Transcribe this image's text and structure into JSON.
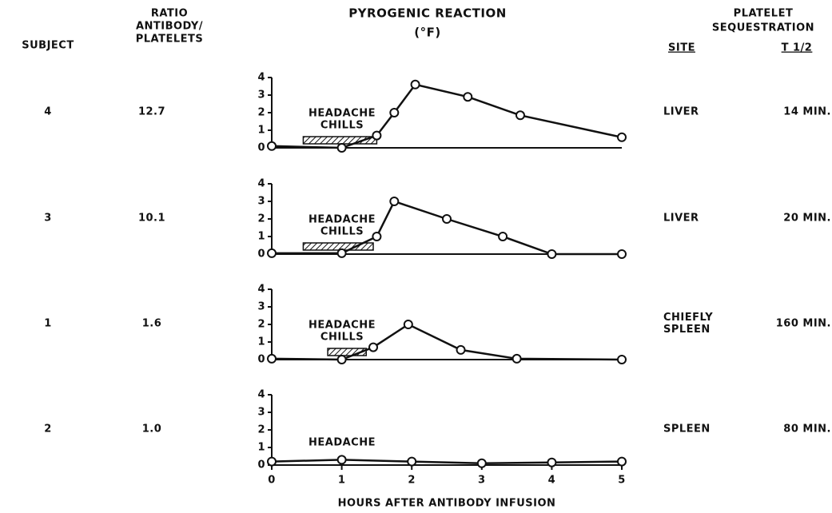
{
  "title": "PYROGENIC REACTION",
  "subtitle": "(°F)",
  "xlabel": "HOURS AFTER ANTIBODY INFUSION",
  "columns": {
    "subject": "SUBJECT",
    "ratio": [
      "RATIO",
      "ANTIBODY/",
      "PLATELETS"
    ],
    "sequestration": [
      "PLATELET",
      "SEQUESTRATION"
    ],
    "site": "SITE",
    "t_half": "T 1/2"
  },
  "rows": [
    {
      "subject": "4",
      "ratio": "12.7",
      "site": [
        "LIVER"
      ],
      "t_half": "14 MIN."
    },
    {
      "subject": "3",
      "ratio": "10.1",
      "site": [
        "LIVER"
      ],
      "t_half": "20 MIN."
    },
    {
      "subject": "1",
      "ratio": "1.6",
      "site": [
        "CHIEFLY",
        "SPLEEN"
      ],
      "t_half": "160 MIN."
    },
    {
      "subject": "2",
      "ratio": "1.0",
      "site": [
        "SPLEEN"
      ],
      "t_half": "80 MIN."
    }
  ],
  "chart_data": [
    {
      "type": "line",
      "x": [
        0,
        1,
        1.5,
        1.75,
        2.05,
        2.8,
        3.55,
        5
      ],
      "values": [
        0.1,
        0,
        0.7,
        2,
        3.6,
        2.9,
        1.85,
        0.6
      ],
      "annotations": [
        "HEADACHE",
        "CHILLS"
      ],
      "symptom_span": [
        0.45,
        1.5
      ],
      "xlim": [
        0,
        5
      ],
      "ylim": [
        0,
        4
      ],
      "yticks": [
        0,
        1,
        2,
        3,
        4
      ]
    },
    {
      "type": "line",
      "x": [
        0,
        1,
        1.5,
        1.75,
        2.5,
        3.3,
        4,
        5
      ],
      "values": [
        0.05,
        0.05,
        1,
        3,
        2,
        1,
        0,
        0
      ],
      "annotations": [
        "HEADACHE",
        "CHILLS"
      ],
      "symptom_span": [
        0.45,
        1.45
      ],
      "xlim": [
        0,
        5
      ],
      "ylim": [
        0,
        4
      ],
      "yticks": [
        0,
        1,
        2,
        3,
        4
      ]
    },
    {
      "type": "line",
      "x": [
        0,
        1,
        1.45,
        1.95,
        2.7,
        3.5,
        5
      ],
      "values": [
        0.05,
        0,
        0.7,
        2,
        0.55,
        0.05,
        0
      ],
      "annotations": [
        "HEADACHE",
        "CHILLS"
      ],
      "symptom_span": [
        0.8,
        1.35
      ],
      "xlim": [
        0,
        5
      ],
      "ylim": [
        0,
        4
      ],
      "yticks": [
        0,
        1,
        2,
        3,
        4
      ]
    },
    {
      "type": "line",
      "x": [
        0,
        1,
        2,
        3,
        4,
        5
      ],
      "values": [
        0.2,
        0.3,
        0.2,
        0.1,
        0.15,
        0.2
      ],
      "annotations": [
        "HEADACHE"
      ],
      "xlim": [
        0,
        5
      ],
      "ylim": [
        0,
        4
      ],
      "yticks": [
        0,
        1,
        2,
        3,
        4
      ],
      "xticks": [
        0,
        1,
        2,
        3,
        4,
        5
      ]
    }
  ]
}
